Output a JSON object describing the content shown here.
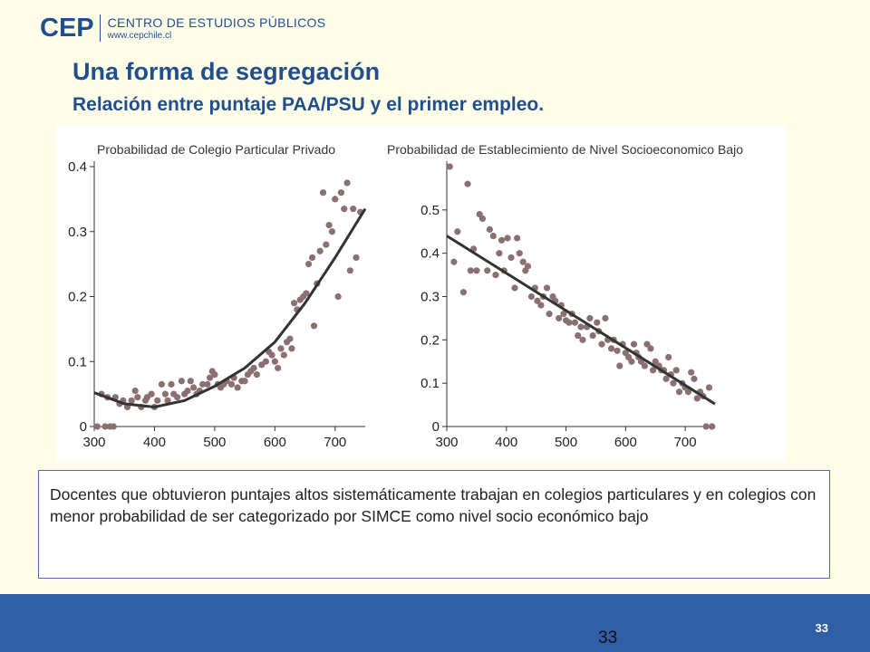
{
  "header": {
    "logo_mark": "CEP",
    "logo_name": "CENTRO DE ESTUDIOS PÚBLICOS",
    "logo_url": "www.cepchile.cl"
  },
  "slide": {
    "title": "Una forma de segregación",
    "subtitle": "Relación entre puntaje PAA/PSU y el primer empleo.",
    "note": "Docentes que obtuvieron puntajes altos sistemáticamente trabajan en colegios particulares y en colegios con menor probabilidad de ser categorizado por SIMCE como nivel socio económico bajo",
    "page_small": "33",
    "page_big": "33"
  },
  "colors": {
    "accent": "#1f4f8f",
    "footer": "#2f5fa7",
    "point": "#8a7070",
    "line": "#333333"
  },
  "chart_data": [
    {
      "type": "scatter",
      "title": "Probabilidad de Colegio Particular Privado",
      "xlim": [
        300,
        750
      ],
      "ylim": [
        0,
        0.4
      ],
      "xticks": [
        "300",
        "400",
        "500",
        "600",
        "700"
      ],
      "yticks": [
        "0",
        "0.1",
        "0.2",
        "0.3",
        "0.4"
      ],
      "points": [
        [
          305,
          0.0
        ],
        [
          312,
          0.05
        ],
        [
          318,
          0.0
        ],
        [
          322,
          0.045
        ],
        [
          326,
          0.0
        ],
        [
          332,
          0.0
        ],
        [
          335,
          0.045
        ],
        [
          342,
          0.035
        ],
        [
          348,
          0.04
        ],
        [
          355,
          0.03
        ],
        [
          362,
          0.04
        ],
        [
          368,
          0.055
        ],
        [
          372,
          0.045
        ],
        [
          378,
          0.03
        ],
        [
          385,
          0.04
        ],
        [
          388,
          0.045
        ],
        [
          395,
          0.05
        ],
        [
          400,
          0.03
        ],
        [
          405,
          0.04
        ],
        [
          412,
          0.065
        ],
        [
          418,
          0.05
        ],
        [
          422,
          0.04
        ],
        [
          428,
          0.065
        ],
        [
          432,
          0.05
        ],
        [
          438,
          0.045
        ],
        [
          445,
          0.07
        ],
        [
          450,
          0.05
        ],
        [
          455,
          0.055
        ],
        [
          460,
          0.07
        ],
        [
          465,
          0.06
        ],
        [
          470,
          0.05
        ],
        [
          475,
          0.055
        ],
        [
          480,
          0.065
        ],
        [
          488,
          0.065
        ],
        [
          492,
          0.075
        ],
        [
          496,
          0.085
        ],
        [
          500,
          0.08
        ],
        [
          505,
          0.065
        ],
        [
          510,
          0.06
        ],
        [
          515,
          0.065
        ],
        [
          520,
          0.07
        ],
        [
          528,
          0.065
        ],
        [
          532,
          0.075
        ],
        [
          538,
          0.06
        ],
        [
          545,
          0.07
        ],
        [
          550,
          0.07
        ],
        [
          555,
          0.08
        ],
        [
          560,
          0.085
        ],
        [
          565,
          0.09
        ],
        [
          570,
          0.08
        ],
        [
          578,
          0.095
        ],
        [
          585,
          0.1
        ],
        [
          590,
          0.115
        ],
        [
          595,
          0.11
        ],
        [
          600,
          0.1
        ],
        [
          605,
          0.09
        ],
        [
          610,
          0.12
        ],
        [
          615,
          0.11
        ],
        [
          620,
          0.13
        ],
        [
          625,
          0.135
        ],
        [
          628,
          0.12
        ],
        [
          632,
          0.19
        ],
        [
          637,
          0.18
        ],
        [
          642,
          0.195
        ],
        [
          647,
          0.2
        ],
        [
          652,
          0.205
        ],
        [
          656,
          0.25
        ],
        [
          662,
          0.26
        ],
        [
          665,
          0.155
        ],
        [
          670,
          0.22
        ],
        [
          675,
          0.27
        ],
        [
          680,
          0.36
        ],
        [
          685,
          0.28
        ],
        [
          690,
          0.31
        ],
        [
          695,
          0.3
        ],
        [
          700,
          0.35
        ],
        [
          705,
          0.2
        ],
        [
          710,
          0.36
        ],
        [
          715,
          0.335
        ],
        [
          720,
          0.375
        ],
        [
          725,
          0.24
        ],
        [
          730,
          0.335
        ],
        [
          735,
          0.26
        ],
        [
          742,
          0.33
        ]
      ],
      "fit": [
        [
          300,
          0.052
        ],
        [
          350,
          0.035
        ],
        [
          400,
          0.03
        ],
        [
          450,
          0.04
        ],
        [
          500,
          0.062
        ],
        [
          550,
          0.09
        ],
        [
          600,
          0.13
        ],
        [
          650,
          0.19
        ],
        [
          700,
          0.26
        ],
        [
          750,
          0.335
        ]
      ]
    },
    {
      "type": "scatter",
      "title": "Probabilidad de Establecimiento de Nivel Socioeconomico Bajo",
      "xlim": [
        300,
        750
      ],
      "ylim": [
        0,
        0.6
      ],
      "xticks": [
        "300",
        "400",
        "500",
        "600",
        "700"
      ],
      "yticks": [
        "0",
        "0.1",
        "0.2",
        "0.3",
        "0.4",
        "0.5"
      ],
      "points": [
        [
          305,
          0.6
        ],
        [
          312,
          0.38
        ],
        [
          318,
          0.45
        ],
        [
          328,
          0.31
        ],
        [
          335,
          0.56
        ],
        [
          340,
          0.36
        ],
        [
          345,
          0.41
        ],
        [
          350,
          0.36
        ],
        [
          355,
          0.49
        ],
        [
          360,
          0.48
        ],
        [
          368,
          0.36
        ],
        [
          372,
          0.455
        ],
        [
          378,
          0.44
        ],
        [
          382,
          0.35
        ],
        [
          388,
          0.4
        ],
        [
          392,
          0.43
        ],
        [
          396,
          0.36
        ],
        [
          402,
          0.435
        ],
        [
          408,
          0.39
        ],
        [
          414,
          0.32
        ],
        [
          418,
          0.435
        ],
        [
          422,
          0.4
        ],
        [
          428,
          0.38
        ],
        [
          432,
          0.36
        ],
        [
          436,
          0.37
        ],
        [
          442,
          0.3
        ],
        [
          448,
          0.32
        ],
        [
          452,
          0.29
        ],
        [
          458,
          0.28
        ],
        [
          462,
          0.3
        ],
        [
          468,
          0.32
        ],
        [
          472,
          0.26
        ],
        [
          478,
          0.3
        ],
        [
          482,
          0.29
        ],
        [
          488,
          0.25
        ],
        [
          492,
          0.28
        ],
        [
          496,
          0.26
        ],
        [
          500,
          0.245
        ],
        [
          505,
          0.24
        ],
        [
          510,
          0.26
        ],
        [
          515,
          0.24
        ],
        [
          520,
          0.21
        ],
        [
          525,
          0.23
        ],
        [
          528,
          0.2
        ],
        [
          535,
          0.23
        ],
        [
          540,
          0.25
        ],
        [
          545,
          0.21
        ],
        [
          552,
          0.24
        ],
        [
          555,
          0.22
        ],
        [
          560,
          0.19
        ],
        [
          566,
          0.25
        ],
        [
          570,
          0.2
        ],
        [
          576,
          0.18
        ],
        [
          580,
          0.2
        ],
        [
          586,
          0.175
        ],
        [
          590,
          0.14
        ],
        [
          595,
          0.19
        ],
        [
          600,
          0.17
        ],
        [
          605,
          0.16
        ],
        [
          610,
          0.15
        ],
        [
          614,
          0.19
        ],
        [
          618,
          0.17
        ],
        [
          622,
          0.16
        ],
        [
          626,
          0.15
        ],
        [
          632,
          0.14
        ],
        [
          636,
          0.19
        ],
        [
          642,
          0.18
        ],
        [
          646,
          0.13
        ],
        [
          650,
          0.15
        ],
        [
          656,
          0.14
        ],
        [
          660,
          0.13
        ],
        [
          664,
          0.13
        ],
        [
          668,
          0.11
        ],
        [
          672,
          0.16
        ],
        [
          676,
          0.12
        ],
        [
          680,
          0.1
        ],
        [
          685,
          0.13
        ],
        [
          690,
          0.08
        ],
        [
          695,
          0.1
        ],
        [
          700,
          0.09
        ],
        [
          705,
          0.08
        ],
        [
          710,
          0.125
        ],
        [
          715,
          0.11
        ],
        [
          720,
          0.065
        ],
        [
          725,
          0.08
        ],
        [
          730,
          0.07
        ],
        [
          735,
          0.0
        ],
        [
          740,
          0.09
        ],
        [
          745,
          0.0
        ]
      ],
      "fit": [
        [
          300,
          0.44
        ],
        [
          750,
          0.052
        ]
      ]
    }
  ]
}
